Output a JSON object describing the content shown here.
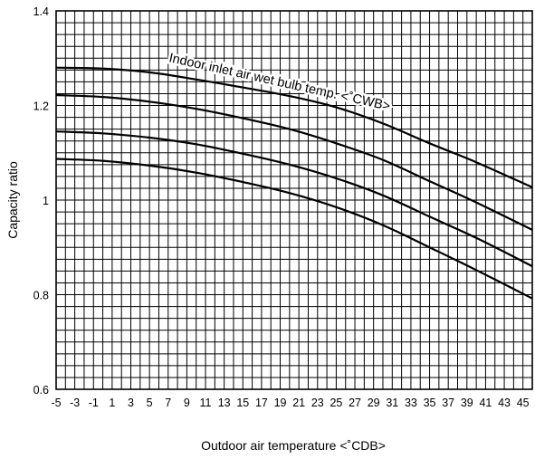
{
  "chart_data": {
    "type": "line",
    "title": "",
    "xlabel": "Outdoor air temperature <˚CDB>",
    "ylabel": "Capacity ratio",
    "xlim": [
      -5,
      46
    ],
    "ylim": [
      0.6,
      1.4
    ],
    "grid": true,
    "x_ticks": [
      "-5",
      "-3",
      "-1",
      "1",
      "3",
      "5",
      "7",
      "9",
      "11",
      "13",
      "15",
      "17",
      "19",
      "21",
      "23",
      "25",
      "27",
      "29",
      "31",
      "33",
      "35",
      "37",
      "39",
      "41",
      "43",
      "45"
    ],
    "y_ticks": [
      "0.6",
      "0.8",
      "1",
      "1.2",
      "1.4"
    ],
    "annotation": "Indoor inlet air wet bulb temp. <˚CWB>",
    "series": [
      {
        "x": [
          -5,
          0,
          5,
          10,
          15,
          20,
          25,
          30,
          35,
          40,
          46
        ],
        "y": [
          1.28,
          1.278,
          1.27,
          1.255,
          1.238,
          1.22,
          1.196,
          1.162,
          1.12,
          1.08,
          1.027
        ]
      },
      {
        "x": [
          -5,
          0,
          5,
          10,
          15,
          20,
          25,
          30,
          35,
          40,
          46
        ],
        "y": [
          1.222,
          1.218,
          1.208,
          1.193,
          1.173,
          1.15,
          1.12,
          1.085,
          1.04,
          0.995,
          0.937
        ]
      },
      {
        "x": [
          -5,
          0,
          5,
          10,
          15,
          20,
          25,
          30,
          35,
          40,
          46
        ],
        "y": [
          1.145,
          1.141,
          1.132,
          1.118,
          1.098,
          1.075,
          1.046,
          1.01,
          0.965,
          0.92,
          0.86
        ]
      },
      {
        "x": [
          -5,
          0,
          5,
          10,
          15,
          20,
          25,
          30,
          35,
          40,
          46
        ],
        "y": [
          1.087,
          1.083,
          1.073,
          1.058,
          1.038,
          1.015,
          0.985,
          0.947,
          0.9,
          0.852,
          0.792
        ]
      }
    ]
  }
}
